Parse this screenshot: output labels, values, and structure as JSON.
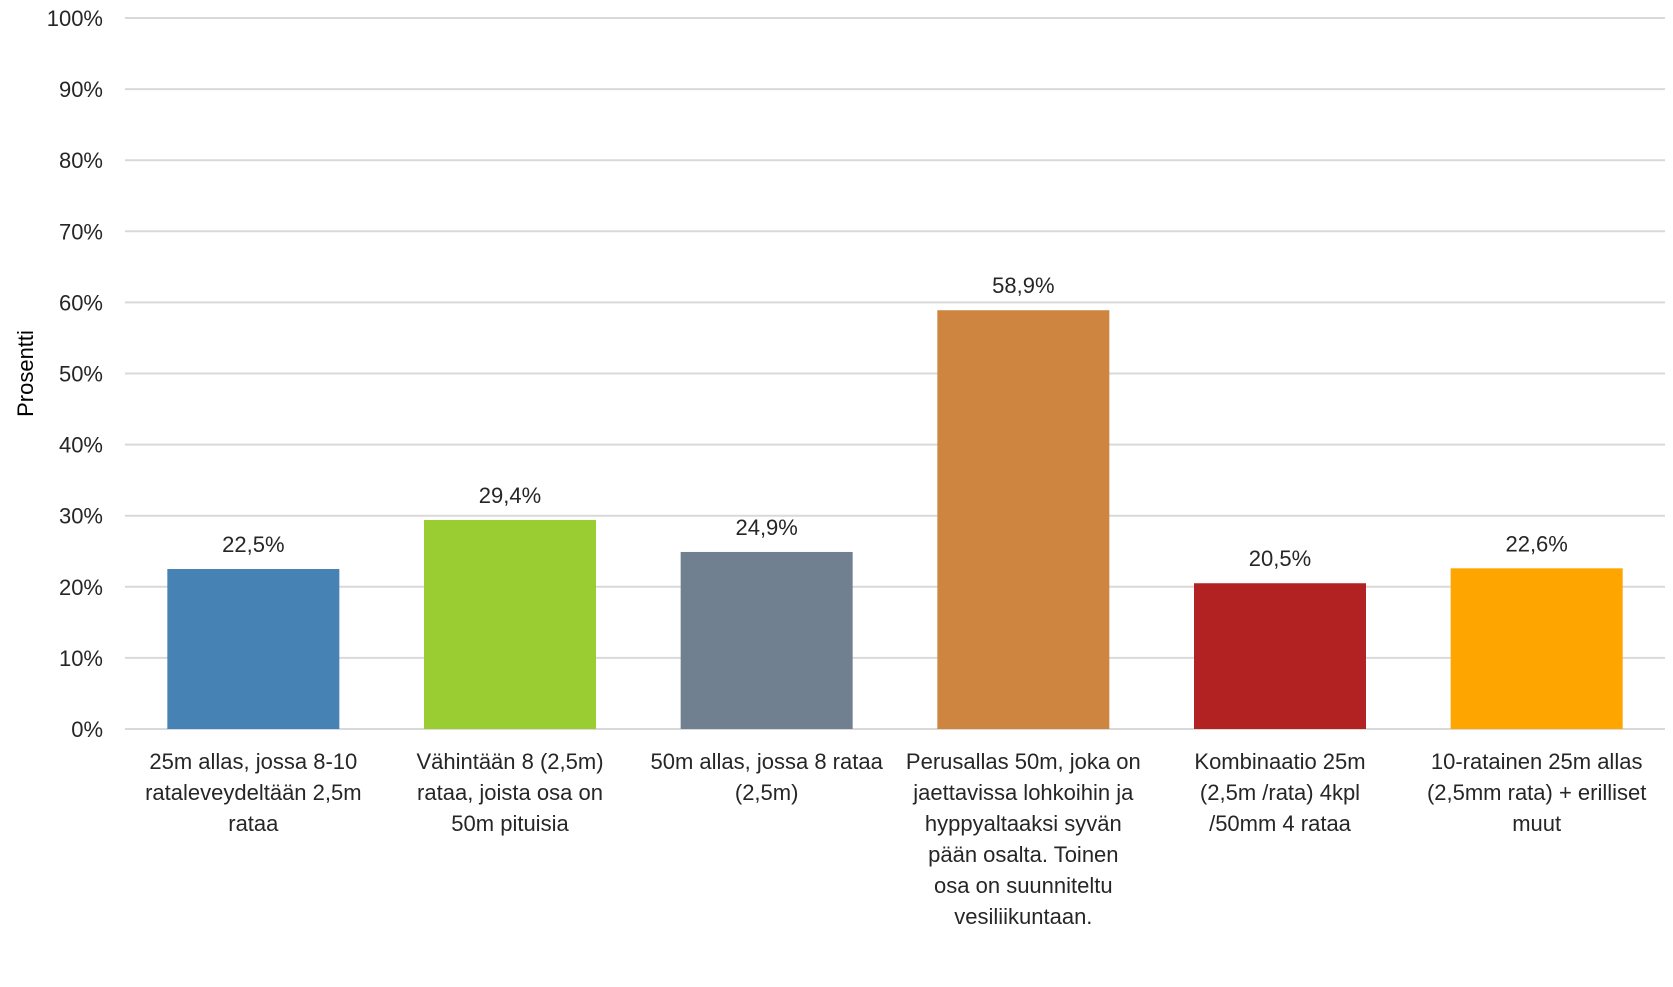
{
  "chart_data": {
    "type": "bar",
    "title": "",
    "xlabel": "",
    "ylabel": "Prosentti",
    "ylim": [
      0,
      100
    ],
    "yticks": [
      0,
      10,
      20,
      30,
      40,
      50,
      60,
      70,
      80,
      90,
      100
    ],
    "ytick_labels": [
      "0%",
      "10%",
      "20%",
      "30%",
      "40%",
      "50%",
      "60%",
      "70%",
      "80%",
      "90%",
      "100%"
    ],
    "grid": true,
    "legend": "none",
    "categories": [
      [
        "25m allas, jossa 8-10",
        "rataleveydeltään 2,5m",
        "rataa"
      ],
      [
        "Vähintään 8 (2,5m)",
        "rataa, joista osa on",
        "50m pituisia"
      ],
      [
        "50m allas, jossa 8 rataa",
        "(2,5m)"
      ],
      [
        "Perusallas 50m, joka on",
        "jaettavissa lohkoihin ja",
        "hyppyaltaaksi syvän",
        "pään osalta.  Toinen",
        "osa on suunniteltu",
        "vesiliikuntaan."
      ],
      [
        "Kombinaatio 25m",
        "(2,5m /rata) 4kpl",
        "/50mm 4 rataa"
      ],
      [
        "10-ratainen 25m allas",
        "(2,5mm rata) + erilliset",
        "muut"
      ]
    ],
    "values": [
      22.5,
      29.4,
      24.9,
      58.9,
      20.5,
      22.6
    ],
    "data_labels": [
      "22,5%",
      "29,4%",
      "24,9%",
      "58,9%",
      "20,5%",
      "22,6%"
    ],
    "colors": [
      "#4682b4",
      "#9acd32",
      "#708090",
      "#cd853f",
      "#b22222",
      "#ffa500"
    ]
  }
}
